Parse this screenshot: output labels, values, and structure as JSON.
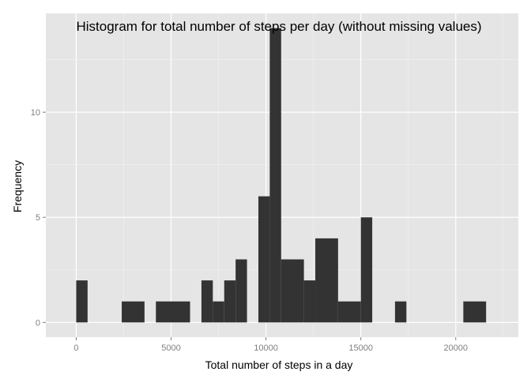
{
  "chart_data": {
    "type": "histogram",
    "title": "Histogram for total number of steps per day (without missing values)",
    "xlabel": "Total number of steps in a day",
    "ylabel": "Frequency",
    "xlim": [
      -1600,
      23300
    ],
    "ylim": [
      -0.7,
      14.7
    ],
    "x_ticks": [
      0,
      5000,
      10000,
      15000,
      20000
    ],
    "x_tick_labels": [
      "0",
      "5000",
      "10000",
      "15000",
      "20000"
    ],
    "y_ticks": [
      0,
      5,
      10
    ],
    "y_tick_labels": [
      "0",
      "5",
      "10"
    ],
    "grid": true,
    "bar_color": "#333333",
    "panel_color": "#e5e5e5",
    "grid_color": "#ffffff",
    "bins": [
      {
        "x0": 0,
        "x1": 600,
        "count": 2
      },
      {
        "x0": 2400,
        "x1": 3600,
        "count": 1
      },
      {
        "x0": 4200,
        "x1": 6000,
        "count": 1
      },
      {
        "x0": 6600,
        "x1": 7200,
        "count": 2
      },
      {
        "x0": 7200,
        "x1": 7800,
        "count": 1
      },
      {
        "x0": 7800,
        "x1": 8400,
        "count": 2
      },
      {
        "x0": 8400,
        "x1": 9000,
        "count": 3
      },
      {
        "x0": 9600,
        "x1": 10200,
        "count": 6
      },
      {
        "x0": 10200,
        "x1": 10800,
        "count": 14
      },
      {
        "x0": 10800,
        "x1": 12000,
        "count": 3
      },
      {
        "x0": 12000,
        "x1": 12600,
        "count": 2
      },
      {
        "x0": 12600,
        "x1": 13800,
        "count": 4
      },
      {
        "x0": 13800,
        "x1": 15000,
        "count": 1
      },
      {
        "x0": 15000,
        "x1": 15600,
        "count": 5
      },
      {
        "x0": 16800,
        "x1": 17400,
        "count": 1
      },
      {
        "x0": 20400,
        "x1": 21600,
        "count": 1
      }
    ]
  }
}
